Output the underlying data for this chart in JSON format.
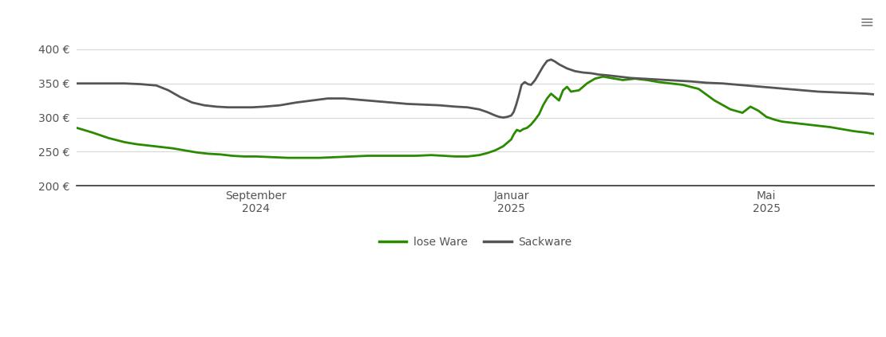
{
  "ylim": [
    200,
    420
  ],
  "yticks": [
    200,
    250,
    300,
    350,
    400
  ],
  "ytick_labels": [
    "200 €",
    "250 €",
    "300 €",
    "350 €",
    "400 €"
  ],
  "grid_color": "#d8d8d8",
  "background_color": "#ffffff",
  "lose_ware_color": "#2a8a00",
  "sackware_color": "#555555",
  "legend_labels": [
    "lose Ware",
    "Sackware"
  ],
  "x_tick_labels": [
    "September\n2024",
    "Januar\n2025",
    "Mai\n2025"
  ],
  "x_tick_positions": [
    0.225,
    0.545,
    0.865
  ],
  "lose_ware_x": [
    0.0,
    0.02,
    0.04,
    0.06,
    0.075,
    0.09,
    0.105,
    0.12,
    0.135,
    0.15,
    0.165,
    0.18,
    0.195,
    0.21,
    0.225,
    0.245,
    0.265,
    0.285,
    0.305,
    0.325,
    0.345,
    0.365,
    0.385,
    0.405,
    0.425,
    0.445,
    0.46,
    0.475,
    0.49,
    0.505,
    0.515,
    0.525,
    0.535,
    0.54,
    0.545,
    0.548,
    0.552,
    0.556,
    0.56,
    0.565,
    0.57,
    0.575,
    0.58,
    0.585,
    0.59,
    0.595,
    0.6,
    0.605,
    0.61,
    0.615,
    0.62,
    0.63,
    0.64,
    0.65,
    0.66,
    0.67,
    0.685,
    0.7,
    0.715,
    0.73,
    0.745,
    0.76,
    0.78,
    0.8,
    0.82,
    0.835,
    0.845,
    0.855,
    0.865,
    0.875,
    0.885,
    0.9,
    0.915,
    0.93,
    0.945,
    0.96,
    0.975,
    0.99,
    1.0
  ],
  "lose_ware_y": [
    285,
    278,
    270,
    264,
    261,
    259,
    257,
    255,
    252,
    249,
    247,
    246,
    244,
    243,
    243,
    242,
    241,
    241,
    241,
    242,
    243,
    244,
    244,
    244,
    244,
    245,
    244,
    243,
    243,
    245,
    248,
    252,
    258,
    263,
    268,
    275,
    282,
    280,
    283,
    285,
    290,
    297,
    305,
    318,
    328,
    335,
    330,
    325,
    340,
    345,
    338,
    340,
    350,
    357,
    360,
    358,
    355,
    357,
    355,
    352,
    350,
    348,
    342,
    325,
    312,
    307,
    316,
    310,
    301,
    297,
    294,
    292,
    290,
    288,
    286,
    283,
    280,
    278,
    276
  ],
  "sackware_x": [
    0.0,
    0.02,
    0.04,
    0.06,
    0.08,
    0.1,
    0.115,
    0.13,
    0.145,
    0.16,
    0.175,
    0.19,
    0.205,
    0.22,
    0.235,
    0.255,
    0.275,
    0.295,
    0.315,
    0.335,
    0.355,
    0.375,
    0.395,
    0.415,
    0.435,
    0.455,
    0.475,
    0.49,
    0.505,
    0.515,
    0.525,
    0.53,
    0.535,
    0.54,
    0.545,
    0.548,
    0.551,
    0.554,
    0.558,
    0.562,
    0.566,
    0.57,
    0.575,
    0.58,
    0.585,
    0.59,
    0.595,
    0.6,
    0.605,
    0.615,
    0.625,
    0.635,
    0.645,
    0.655,
    0.665,
    0.68,
    0.695,
    0.71,
    0.725,
    0.74,
    0.755,
    0.77,
    0.79,
    0.81,
    0.83,
    0.85,
    0.87,
    0.89,
    0.91,
    0.93,
    0.95,
    0.97,
    0.99,
    1.0
  ],
  "sackware_y": [
    350,
    350,
    350,
    350,
    349,
    347,
    340,
    330,
    322,
    318,
    316,
    315,
    315,
    315,
    316,
    318,
    322,
    325,
    328,
    328,
    326,
    324,
    322,
    320,
    319,
    318,
    316,
    315,
    312,
    308,
    303,
    301,
    300,
    301,
    303,
    308,
    318,
    330,
    348,
    352,
    349,
    348,
    355,
    365,
    375,
    383,
    385,
    382,
    378,
    372,
    368,
    366,
    365,
    363,
    362,
    360,
    358,
    357,
    356,
    355,
    354,
    353,
    351,
    350,
    348,
    346,
    344,
    342,
    340,
    338,
    337,
    336,
    335,
    334
  ]
}
